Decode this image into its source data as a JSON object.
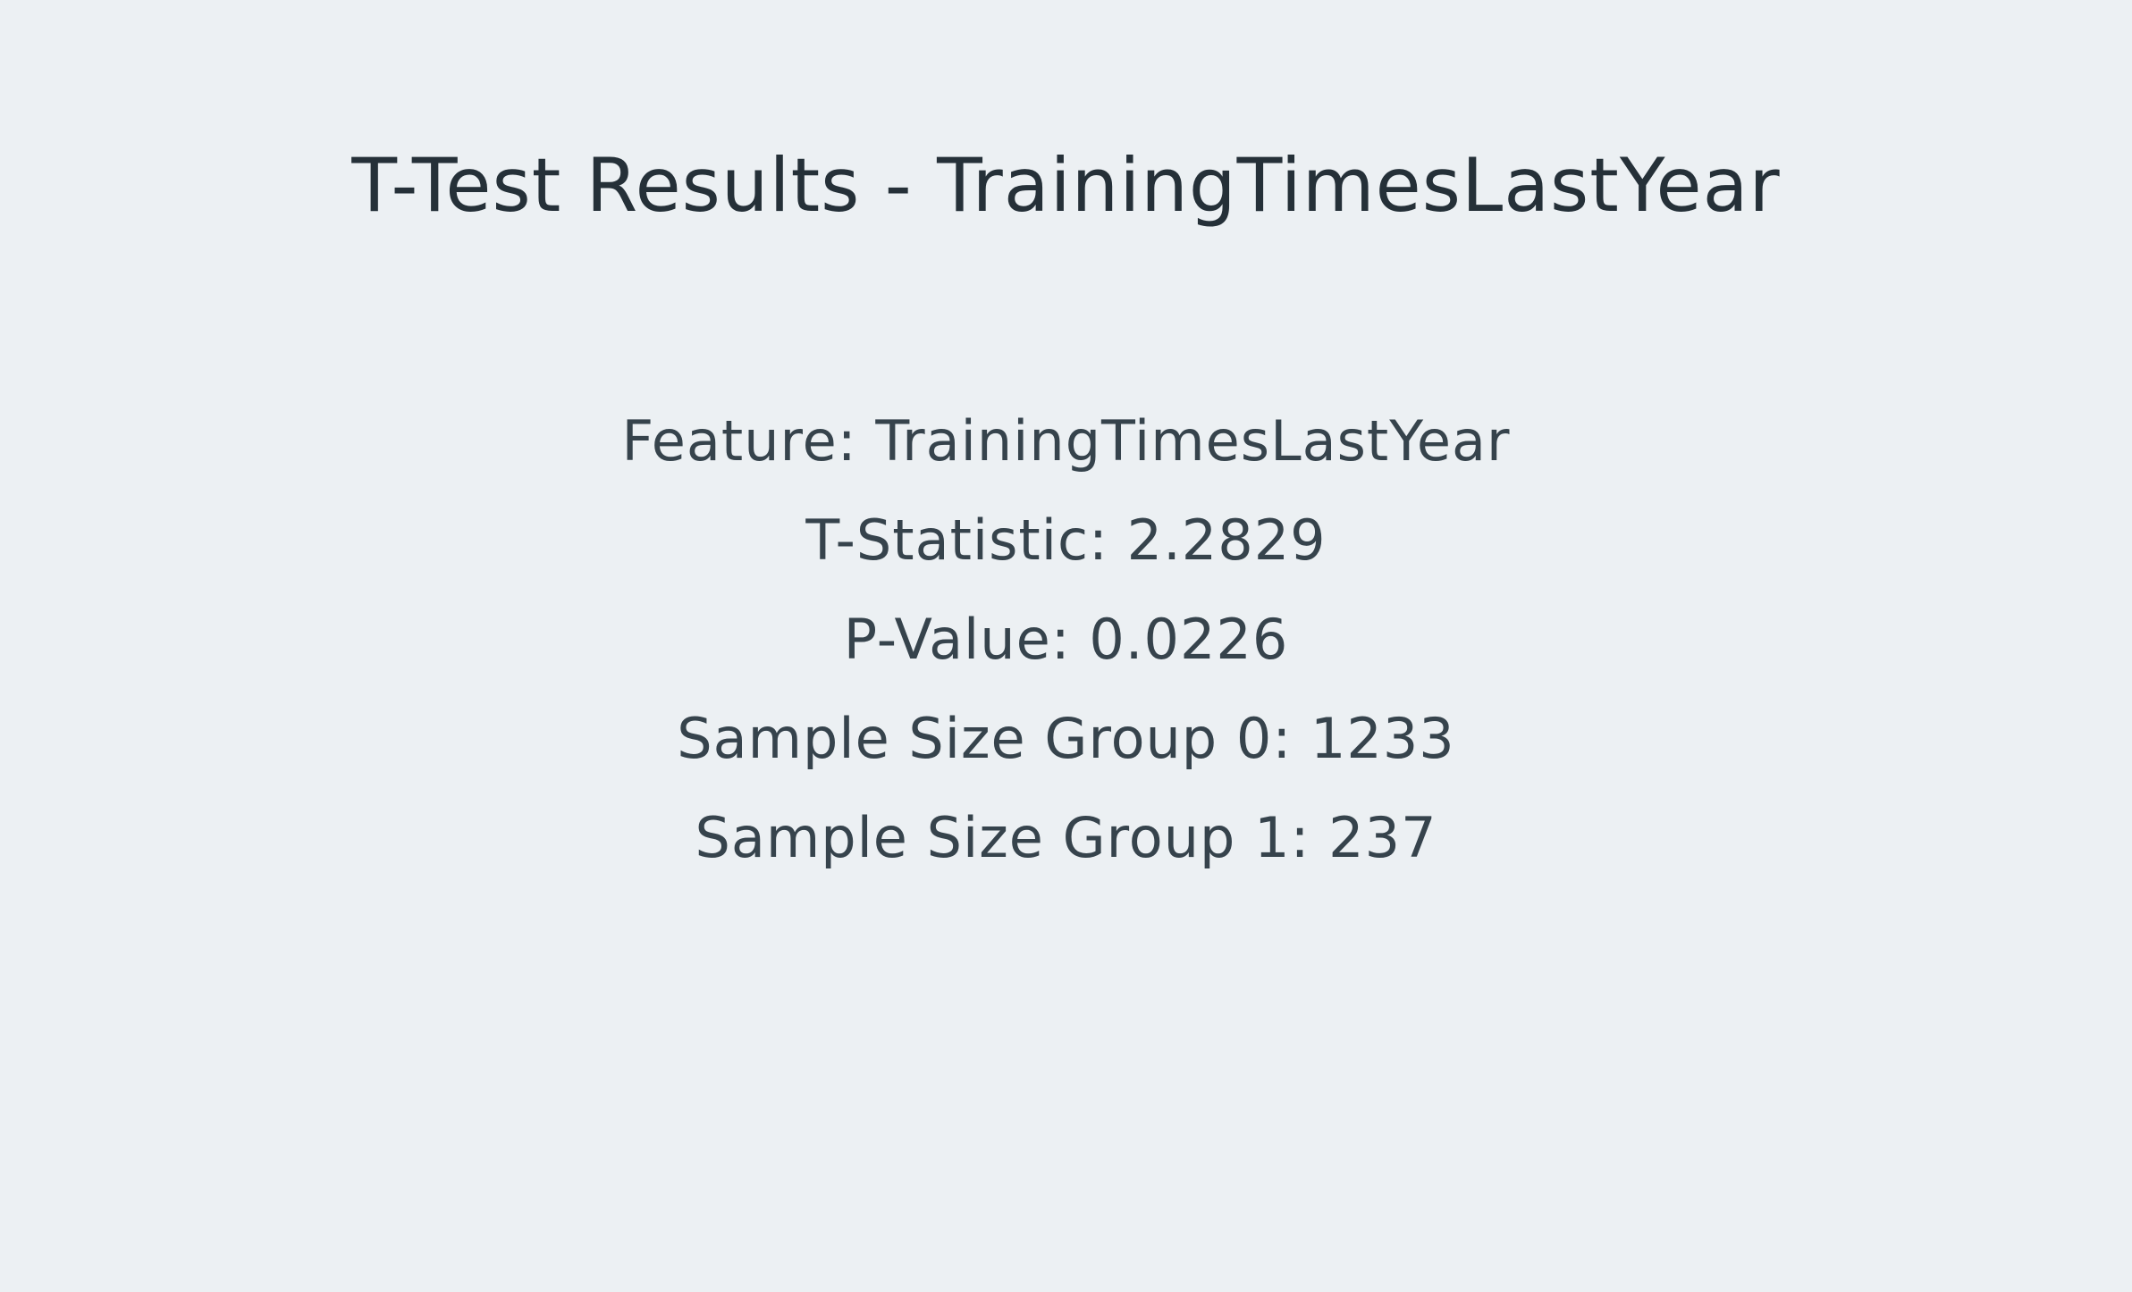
{
  "title": "T-Test Results - TrainingTimesLastYear",
  "results": [
    {
      "label": "Feature",
      "value": "TrainingTimesLastYear"
    },
    {
      "label": "T-Statistic",
      "value": "2.2829"
    },
    {
      "label": "P-Value",
      "value": "0.0226"
    },
    {
      "label": "Sample Size Group 0",
      "value": "1233"
    },
    {
      "label": "Sample Size Group 1",
      "value": "237"
    }
  ]
}
